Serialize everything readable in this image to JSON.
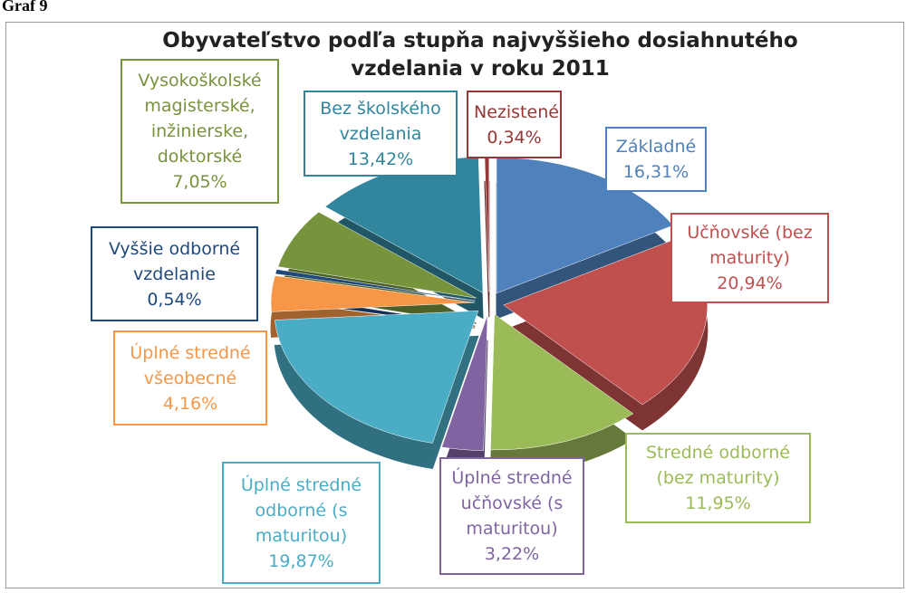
{
  "caption": "Graf 9",
  "chart_data": {
    "type": "pie",
    "title": "Obyvateľstvo podľa stupňa najvyššieho dosiahnutého vzdelania v roku 2011",
    "categories": [
      "Základné",
      "Učňovské (bez maturity)",
      "Stredné odborné (bez maturity)",
      "Úplné stredné učňovské (s maturitou)",
      "Úplné stredné odborné (s maturitou)",
      "Úplné stredné všeobecné",
      "Vyššie odborné vzdelanie",
      "Vysokoškolské magisterské, inžinierske, doktorské",
      "Bez školského vzdelania",
      "Nezistené"
    ],
    "values": [
      16.31,
      20.94,
      11.95,
      3.22,
      19.87,
      4.16,
      0.54,
      7.05,
      13.42,
      0.34
    ],
    "value_labels": [
      "16,31%",
      "20,94%",
      "11,95%",
      "3,22%",
      "19,87%",
      "4,16%",
      "0,54%",
      "7,05%",
      "13,42%",
      "0,34%"
    ],
    "colors": [
      "#4f81bd",
      "#c0504d",
      "#9bbb59",
      "#8064a2",
      "#4bacc6",
      "#f79646",
      "#1f497d",
      "#77933c",
      "#31859c",
      "#953735"
    ]
  }
}
